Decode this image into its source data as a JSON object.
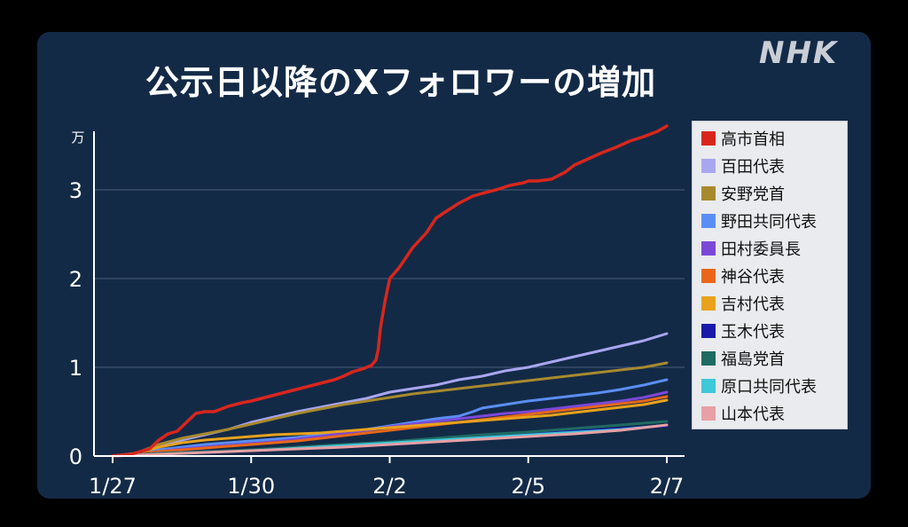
{
  "title": "公示日以降のXフォロワーの増加",
  "brand": "NHK",
  "chart_data": {
    "type": "line",
    "title": "公示日以降のXフォロワーの増加",
    "y_unit": "万",
    "ylim": [
      0,
      3.7
    ],
    "y_ticks": [
      0,
      1,
      2,
      3
    ],
    "x_ticks": [
      "1/27",
      "1/30",
      "2/2",
      "2/5",
      "2/7"
    ],
    "x_tick_positions": [
      0,
      3,
      6,
      9,
      12
    ],
    "xlim": [
      0,
      12
    ],
    "grid": true,
    "legend_position": "right",
    "series": [
      {
        "name": "高市首相",
        "color": "#d9261c",
        "width": 3.5,
        "x": [
          0,
          0.4,
          0.8,
          1.0,
          1.2,
          1.4,
          1.6,
          1.8,
          2.0,
          2.2,
          2.5,
          2.8,
          3.0,
          3.3,
          3.6,
          3.9,
          4.2,
          4.5,
          4.8,
          5.0,
          5.2,
          5.4,
          5.5,
          5.6,
          5.7,
          5.75,
          5.8,
          5.9,
          6.0,
          6.2,
          6.5,
          6.8,
          7.0,
          7.2,
          7.5,
          7.8,
          8.0,
          8.3,
          8.6,
          8.9,
          9.0,
          9.2,
          9.5,
          9.8,
          10.0,
          10.3,
          10.6,
          10.9,
          11.2,
          11.5,
          11.8,
          12.0
        ],
        "y": [
          0,
          0.02,
          0.08,
          0.18,
          0.25,
          0.28,
          0.38,
          0.48,
          0.5,
          0.5,
          0.56,
          0.6,
          0.62,
          0.66,
          0.7,
          0.74,
          0.78,
          0.82,
          0.86,
          0.9,
          0.95,
          0.98,
          1.0,
          1.02,
          1.08,
          1.2,
          1.45,
          1.75,
          2.0,
          2.12,
          2.35,
          2.52,
          2.68,
          2.75,
          2.85,
          2.93,
          2.96,
          3.0,
          3.05,
          3.08,
          3.1,
          3.1,
          3.12,
          3.2,
          3.28,
          3.35,
          3.42,
          3.48,
          3.55,
          3.6,
          3.66,
          3.72
        ]
      },
      {
        "name": "百田代表",
        "color": "#a9a6f0",
        "width": 3,
        "x": [
          0,
          0.5,
          1.0,
          1.5,
          2.0,
          2.5,
          3.0,
          3.5,
          4.0,
          4.5,
          5.0,
          5.5,
          6.0,
          6.5,
          7.0,
          7.5,
          8.0,
          8.5,
          9.0,
          9.5,
          10.0,
          10.5,
          11.0,
          11.5,
          12.0
        ],
        "y": [
          0,
          0.03,
          0.12,
          0.18,
          0.24,
          0.3,
          0.38,
          0.44,
          0.5,
          0.55,
          0.6,
          0.65,
          0.72,
          0.76,
          0.8,
          0.86,
          0.9,
          0.96,
          1.0,
          1.06,
          1.12,
          1.18,
          1.24,
          1.3,
          1.38
        ]
      },
      {
        "name": "安野党首",
        "color": "#a88a2e",
        "width": 3,
        "x": [
          0,
          0.5,
          1.0,
          1.5,
          2.0,
          2.5,
          3.0,
          3.5,
          4.0,
          4.5,
          5.0,
          5.5,
          6.0,
          6.5,
          7.0,
          7.5,
          8.0,
          8.5,
          9.0,
          9.5,
          10.0,
          10.5,
          11.0,
          11.5,
          12.0
        ],
        "y": [
          0,
          0.03,
          0.13,
          0.2,
          0.25,
          0.3,
          0.36,
          0.42,
          0.48,
          0.53,
          0.58,
          0.62,
          0.66,
          0.7,
          0.73,
          0.76,
          0.79,
          0.82,
          0.85,
          0.88,
          0.91,
          0.94,
          0.97,
          1.0,
          1.05
        ]
      },
      {
        "name": "野田共同代表",
        "color": "#5b8ef5",
        "width": 3,
        "x": [
          0,
          0.5,
          1.0,
          1.5,
          2.0,
          2.5,
          3.0,
          3.5,
          4.0,
          4.5,
          5.0,
          5.5,
          6.0,
          6.5,
          7.0,
          7.5,
          7.8,
          8.0,
          8.5,
          9.0,
          9.5,
          10.0,
          10.5,
          11.0,
          11.5,
          12.0
        ],
        "y": [
          0,
          0.02,
          0.07,
          0.1,
          0.13,
          0.15,
          0.17,
          0.19,
          0.21,
          0.24,
          0.27,
          0.3,
          0.34,
          0.38,
          0.42,
          0.45,
          0.5,
          0.54,
          0.58,
          0.62,
          0.65,
          0.68,
          0.71,
          0.75,
          0.8,
          0.86
        ]
      },
      {
        "name": "田村委員長",
        "color": "#7c48d8",
        "width": 3,
        "x": [
          0,
          0.5,
          1.0,
          1.5,
          2.0,
          2.5,
          3.0,
          3.5,
          4.0,
          4.5,
          5.0,
          5.5,
          6.0,
          6.5,
          7.0,
          7.5,
          8.0,
          8.5,
          9.0,
          9.5,
          10.0,
          10.5,
          11.0,
          11.5,
          12.0
        ],
        "y": [
          0,
          0.02,
          0.05,
          0.08,
          0.1,
          0.12,
          0.14,
          0.16,
          0.19,
          0.22,
          0.26,
          0.29,
          0.33,
          0.36,
          0.39,
          0.42,
          0.45,
          0.48,
          0.5,
          0.53,
          0.56,
          0.59,
          0.62,
          0.66,
          0.72
        ]
      },
      {
        "name": "神谷代表",
        "color": "#e8671a",
        "width": 3,
        "x": [
          0,
          0.5,
          1.0,
          1.5,
          2.0,
          2.5,
          3.0,
          3.5,
          4.0,
          4.5,
          5.0,
          5.5,
          6.0,
          6.5,
          7.0,
          7.5,
          8.0,
          8.5,
          9.0,
          9.5,
          10.0,
          10.5,
          11.0,
          11.5,
          12.0
        ],
        "y": [
          0,
          0.02,
          0.05,
          0.07,
          0.09,
          0.11,
          0.13,
          0.15,
          0.17,
          0.2,
          0.23,
          0.26,
          0.29,
          0.32,
          0.35,
          0.38,
          0.41,
          0.44,
          0.47,
          0.5,
          0.53,
          0.56,
          0.59,
          0.62,
          0.67
        ]
      },
      {
        "name": "吉村代表",
        "color": "#e8a21c",
        "width": 3,
        "x": [
          0,
          0.5,
          1.0,
          1.5,
          2.0,
          2.5,
          3.0,
          3.5,
          4.0,
          4.5,
          5.0,
          5.5,
          6.0,
          6.5,
          7.0,
          7.5,
          8.0,
          8.5,
          9.0,
          9.5,
          10.0,
          10.5,
          11.0,
          11.5,
          12.0
        ],
        "y": [
          0,
          0.03,
          0.1,
          0.15,
          0.18,
          0.2,
          0.22,
          0.24,
          0.25,
          0.26,
          0.28,
          0.3,
          0.32,
          0.34,
          0.36,
          0.38,
          0.4,
          0.42,
          0.44,
          0.46,
          0.49,
          0.52,
          0.55,
          0.58,
          0.63
        ]
      },
      {
        "name": "玉木代表",
        "color": "#1a1aa8",
        "width": 3,
        "x": [
          0,
          1.0,
          2.0,
          3.0,
          4.0,
          5.0,
          6.0,
          7.0,
          8.0,
          9.0,
          10.0,
          11.0,
          12.0
        ],
        "y": [
          0,
          0.03,
          0.05,
          0.07,
          0.09,
          0.12,
          0.15,
          0.19,
          0.22,
          0.25,
          0.28,
          0.31,
          0.34
        ]
      },
      {
        "name": "福島党首",
        "color": "#1f6a62",
        "width": 3,
        "x": [
          0,
          1.0,
          2.0,
          3.0,
          4.0,
          5.0,
          6.0,
          7.0,
          8.0,
          9.0,
          10.0,
          11.0,
          12.0
        ],
        "y": [
          0,
          0.03,
          0.05,
          0.07,
          0.1,
          0.13,
          0.16,
          0.2,
          0.24,
          0.27,
          0.31,
          0.35,
          0.39
        ]
      },
      {
        "name": "原口共同代表",
        "color": "#3fc8d8",
        "width": 2.5,
        "x": [
          0,
          1.0,
          2.0,
          3.0,
          4.0,
          5.0,
          6.0,
          7.0,
          8.0,
          9.0,
          10.0,
          11.0,
          12.0
        ],
        "y": [
          0,
          0.02,
          0.04,
          0.06,
          0.09,
          0.12,
          0.15,
          0.18,
          0.21,
          0.24,
          0.27,
          0.3,
          0.35
        ]
      },
      {
        "name": "山本代表",
        "color": "#e8a0a6",
        "width": 3,
        "x": [
          0,
          1.0,
          2.0,
          3.0,
          4.0,
          5.0,
          6.0,
          7.0,
          8.0,
          9.0,
          10.0,
          11.0,
          12.0
        ],
        "y": [
          0,
          0.02,
          0.04,
          0.06,
          0.08,
          0.1,
          0.13,
          0.16,
          0.19,
          0.22,
          0.25,
          0.29,
          0.35
        ]
      }
    ]
  }
}
